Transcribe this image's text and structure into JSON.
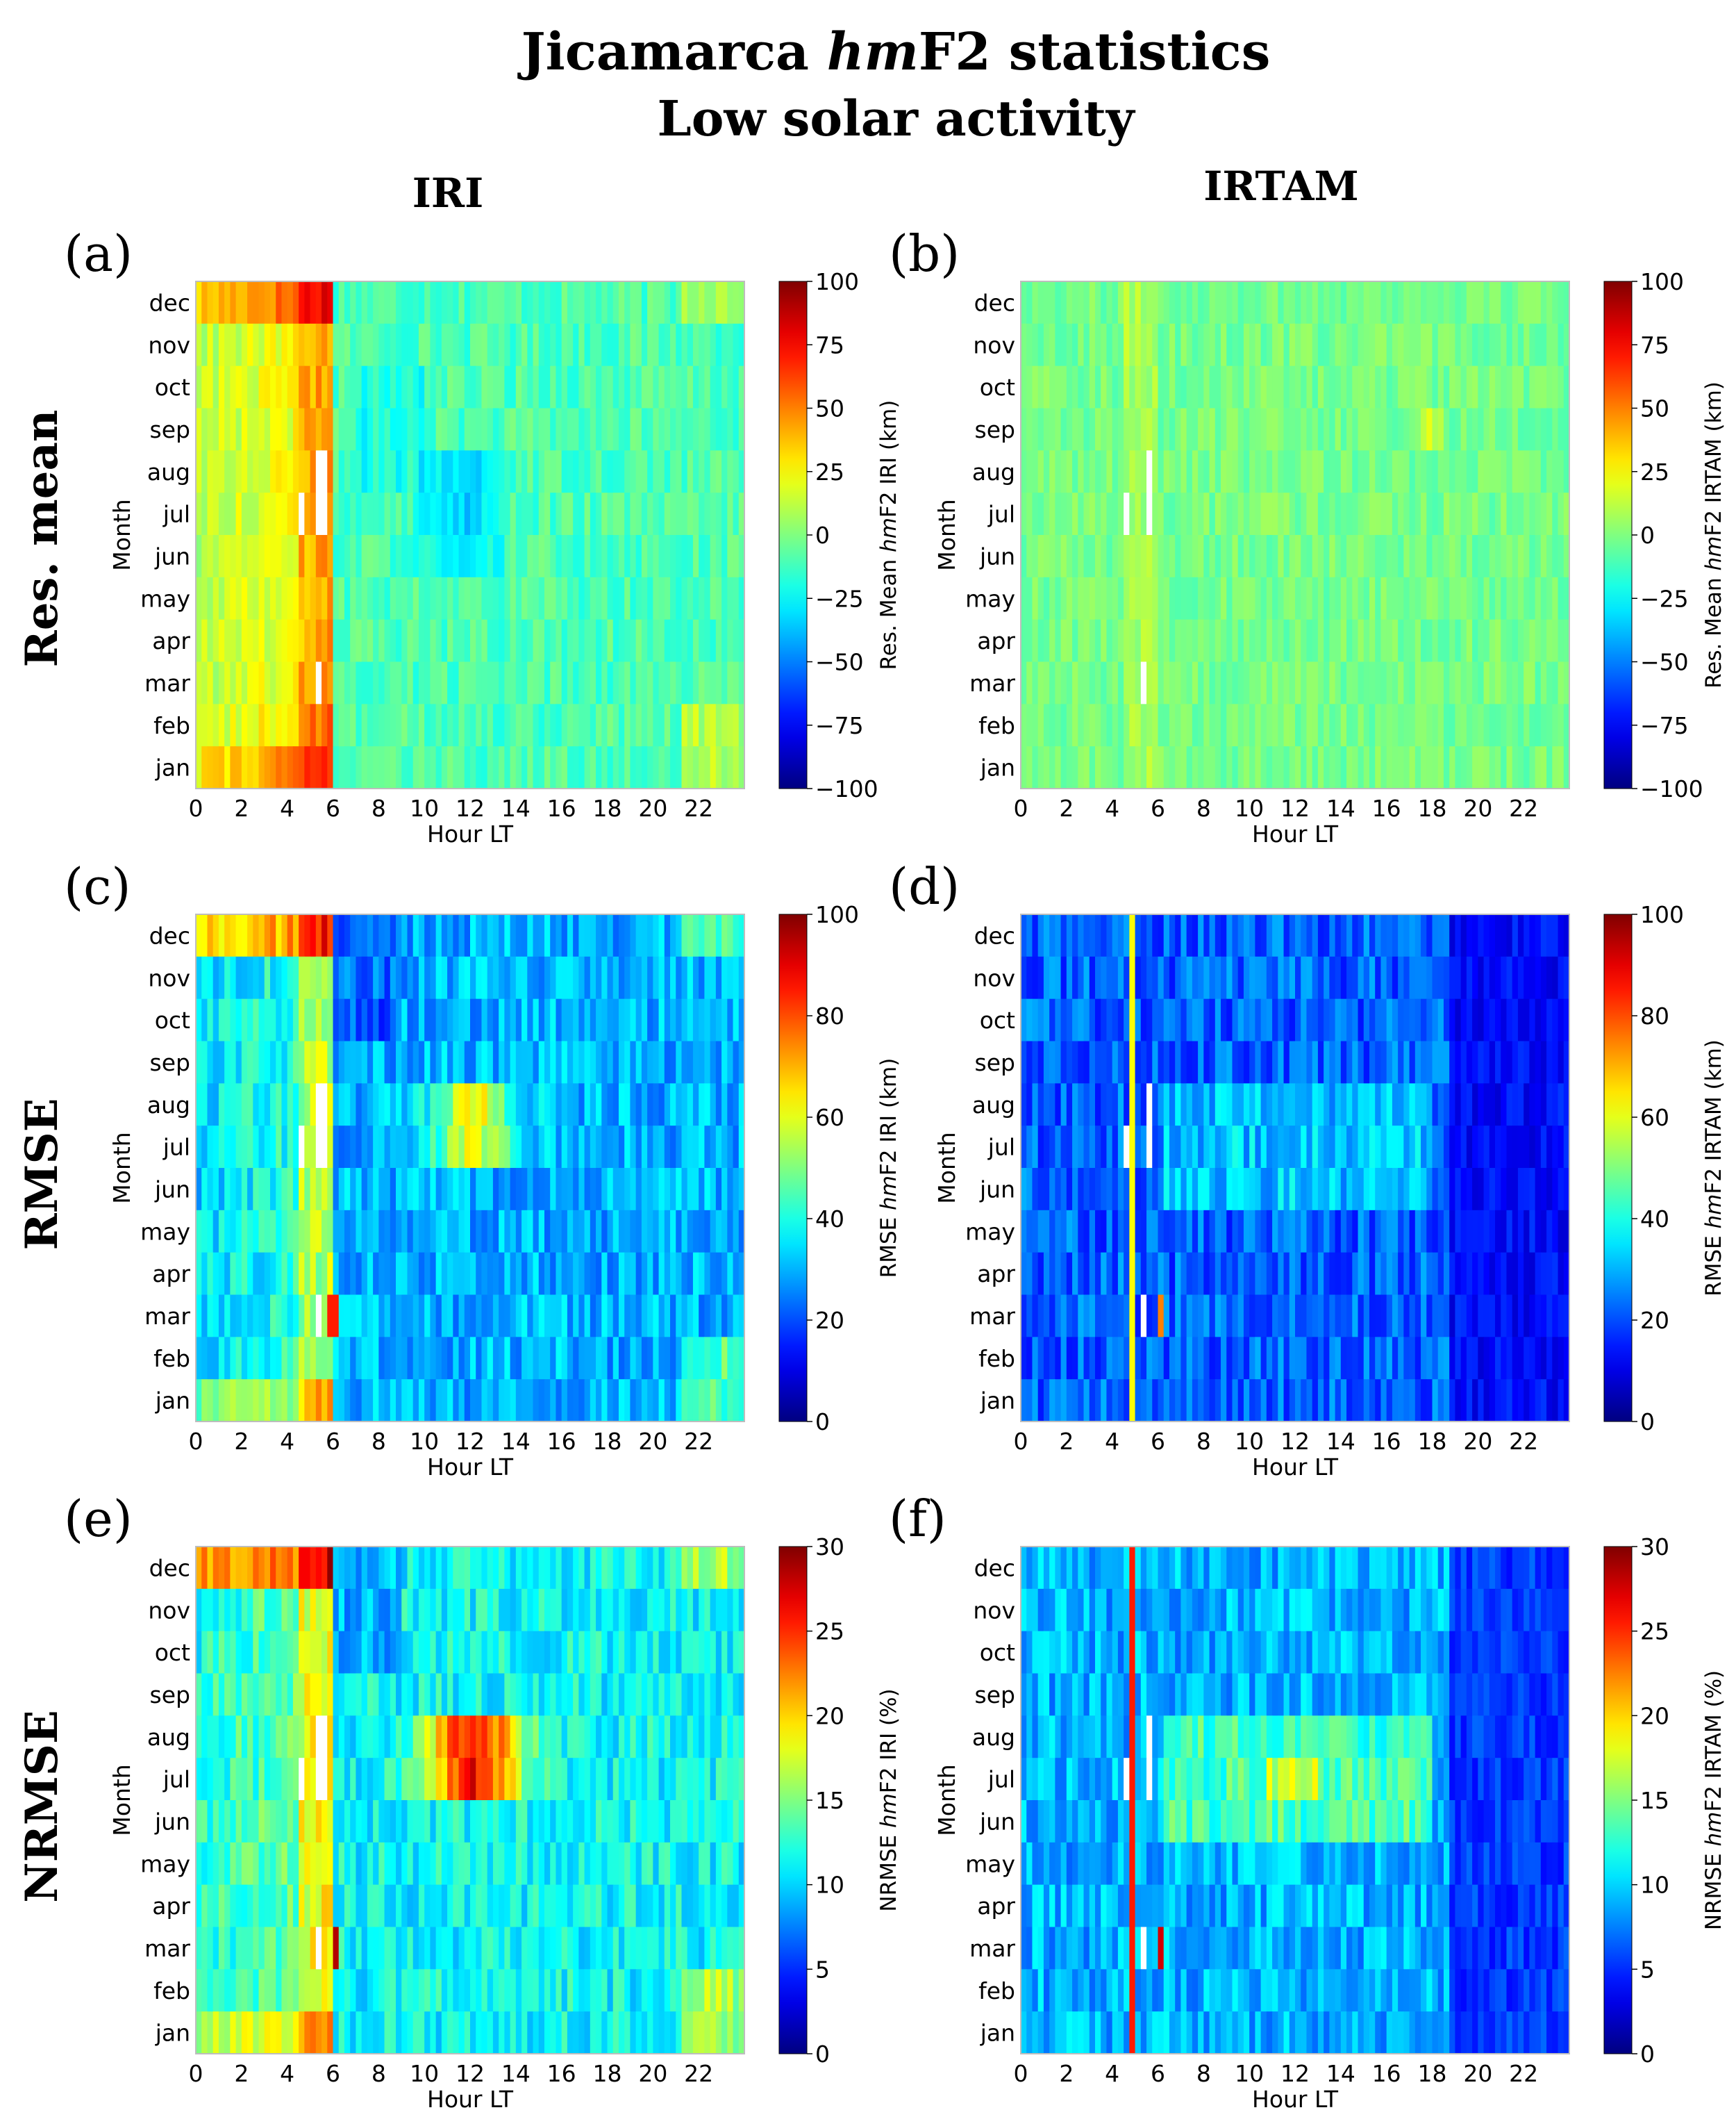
{
  "figure": {
    "title_pre": "Jicamarca ",
    "title_em": "hm",
    "title_post": "F2 statistics",
    "subtitle": "Low solar activity",
    "column_headers": [
      "IRI",
      "IRTAM"
    ],
    "row_headers": [
      "Res. mean",
      "RMSE",
      "NRMSE"
    ]
  },
  "colors": {
    "colormap": "jet",
    "missing": "#ffffff",
    "frame": "#bdbdbd",
    "text": "#000000"
  },
  "axes_common": {
    "xlabel": "Hour LT",
    "ylabel": "Month",
    "x_ticks": [
      0,
      2,
      4,
      6,
      8,
      10,
      12,
      14,
      16,
      18,
      20,
      22
    ],
    "x_tick_labels": [
      "0",
      "2",
      "4",
      "6",
      "8",
      "10",
      "12",
      "14",
      "16",
      "18",
      "20",
      "22"
    ],
    "xlim": [
      0,
      24
    ],
    "months_top_to_bottom": [
      "dec",
      "nov",
      "oct",
      "sep",
      "aug",
      "jul",
      "jun",
      "may",
      "apr",
      "mar",
      "feb",
      "jan"
    ],
    "time_bins_per_hour": 4
  },
  "chart_data": [
    {
      "type": "heatmap",
      "panel_label": "(a)",
      "model": "IRI",
      "stat": "resmean",
      "colorbar_label": "Res. Mean hmF2 IRI (km)",
      "colorbar_pre": "Res. Mean ",
      "colorbar_em": "hm",
      "colorbar_post": "F2 IRI (km)",
      "vmin": -100,
      "vmax": 100,
      "colorbar_ticks": [
        100,
        75,
        50,
        25,
        0,
        -25,
        -50,
        -75,
        -100
      ],
      "colorbar_tick_labels": [
        "100",
        "75",
        "50",
        "25",
        "0",
        "−25",
        "−50",
        "−75",
        "−100"
      ],
      "missing_cells": [
        [
          "aug",
          5.25,
          5.75
        ],
        [
          "jul",
          4.5,
          4.75
        ],
        [
          "jul",
          5.25,
          5.75
        ],
        [
          "mar",
          5.25,
          5.5
        ]
      ]
    },
    {
      "type": "heatmap",
      "panel_label": "(b)",
      "model": "IRTAM",
      "stat": "resmean",
      "colorbar_label": "Res. Mean hmF2 IRTAM (km)",
      "colorbar_pre": "Res. Mean ",
      "colorbar_em": "hm",
      "colorbar_post": "F2 IRTAM (km)",
      "vmin": -100,
      "vmax": 100,
      "colorbar_ticks": [
        100,
        75,
        50,
        25,
        0,
        -25,
        -50,
        -75,
        -100
      ],
      "colorbar_tick_labels": [
        "100",
        "75",
        "50",
        "25",
        "0",
        "−25",
        "−50",
        "−75",
        "−100"
      ],
      "missing_cells": [
        [
          "aug",
          5.5,
          5.75
        ],
        [
          "jul",
          4.5,
          4.75
        ],
        [
          "jul",
          5.5,
          5.75
        ],
        [
          "mar",
          5.25,
          5.5
        ]
      ]
    },
    {
      "type": "heatmap",
      "panel_label": "(c)",
      "model": "IRI",
      "stat": "rmse",
      "colorbar_label": "RMSE hmF2 IRI (km)",
      "colorbar_pre": "RMSE ",
      "colorbar_em": "hm",
      "colorbar_post": "F2 IRI (km)",
      "vmin": 0,
      "vmax": 100,
      "colorbar_ticks": [
        100,
        80,
        60,
        40,
        20,
        0
      ],
      "colorbar_tick_labels": [
        "100",
        "80",
        "60",
        "40",
        "20",
        "0"
      ],
      "missing_cells": [
        [
          "aug",
          5.25,
          5.75
        ],
        [
          "jul",
          4.5,
          4.75
        ],
        [
          "jul",
          5.25,
          5.75
        ],
        [
          "mar",
          5.25,
          5.5
        ]
      ]
    },
    {
      "type": "heatmap",
      "panel_label": "(d)",
      "model": "IRTAM",
      "stat": "rmse",
      "colorbar_label": "RMSE hmF2 IRTAM (km)",
      "colorbar_pre": "RMSE ",
      "colorbar_em": "hm",
      "colorbar_post": "F2 IRTAM (km)",
      "vmin": 0,
      "vmax": 100,
      "colorbar_ticks": [
        100,
        80,
        60,
        40,
        20,
        0
      ],
      "colorbar_tick_labels": [
        "100",
        "80",
        "60",
        "40",
        "20",
        "0"
      ],
      "missing_cells": [
        [
          "aug",
          5.5,
          5.75
        ],
        [
          "jul",
          4.5,
          4.75
        ],
        [
          "jul",
          5.5,
          5.75
        ],
        [
          "mar",
          5.25,
          5.5
        ]
      ]
    },
    {
      "type": "heatmap",
      "panel_label": "(e)",
      "model": "IRI",
      "stat": "nrmse",
      "colorbar_label": "NRMSE hmF2 IRI (%)",
      "colorbar_pre": "NRMSE ",
      "colorbar_em": "hm",
      "colorbar_post": "F2 IRI (%)",
      "vmin": 0,
      "vmax": 30,
      "colorbar_ticks": [
        30,
        25,
        20,
        15,
        10,
        5,
        0
      ],
      "colorbar_tick_labels": [
        "30",
        "25",
        "20",
        "15",
        "10",
        "5",
        "0"
      ],
      "missing_cells": [
        [
          "aug",
          5.25,
          5.75
        ],
        [
          "jul",
          4.5,
          4.75
        ],
        [
          "jul",
          5.25,
          5.75
        ],
        [
          "mar",
          5.25,
          5.5
        ]
      ]
    },
    {
      "type": "heatmap",
      "panel_label": "(f)",
      "model": "IRTAM",
      "stat": "nrmse",
      "colorbar_label": "NRMSE hmF2 IRTAM (%)",
      "colorbar_pre": "NRMSE ",
      "colorbar_em": "hm",
      "colorbar_post": "F2 IRTAM (%)",
      "vmin": 0,
      "vmax": 30,
      "colorbar_ticks": [
        30,
        25,
        20,
        15,
        10,
        5,
        0
      ],
      "colorbar_tick_labels": [
        "30",
        "25",
        "20",
        "15",
        "10",
        "5",
        "0"
      ],
      "missing_cells": [
        [
          "aug",
          5.5,
          5.75
        ],
        [
          "jul",
          4.5,
          4.75
        ],
        [
          "jul",
          5.5,
          5.75
        ],
        [
          "mar",
          5.25,
          5.5
        ]
      ]
    }
  ]
}
